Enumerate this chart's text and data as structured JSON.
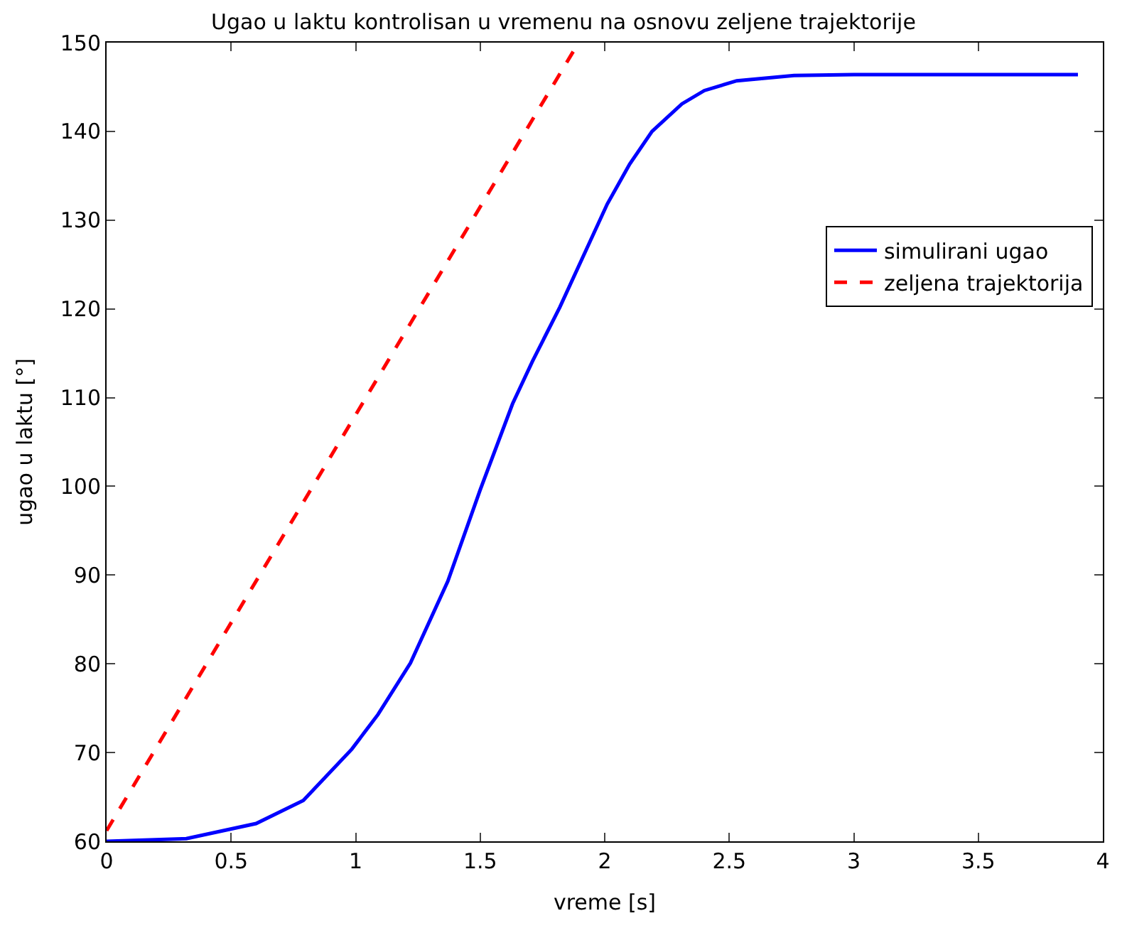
{
  "chart_data": {
    "type": "line",
    "title": "Ugao u laktu kontrolisan u vremenu na osnovu zeljene trajektorije",
    "xlabel": "vreme [s]",
    "ylabel": "ugao u laktu [°]",
    "xlim": [
      0,
      4
    ],
    "ylim": [
      60,
      150
    ],
    "xticks": [
      0,
      0.5,
      1,
      1.5,
      2,
      2.5,
      3,
      3.5,
      4
    ],
    "yticks": [
      60,
      70,
      80,
      90,
      100,
      110,
      120,
      130,
      140,
      150
    ],
    "legend": "right",
    "series": [
      {
        "name": "simulirani ugao",
        "color": "#0000ff",
        "line_style": "solid",
        "x": [
          0,
          0.32,
          0.6,
          0.79,
          0.985,
          1.09,
          1.22,
          1.37,
          1.5,
          1.63,
          1.71,
          1.82,
          2.01,
          2.1,
          2.19,
          2.31,
          2.4,
          2.53,
          2.76,
          3.0,
          3.9
        ],
        "values": [
          60,
          60.3,
          62,
          64.6,
          70.4,
          74.3,
          80.1,
          89.3,
          99.6,
          109.3,
          114.1,
          120.2,
          131.8,
          136.3,
          140,
          143.1,
          144.6,
          145.7,
          146.3,
          146.4,
          146.4
        ]
      },
      {
        "name": "zeljena trajektorija",
        "color": "#ff0000",
        "line_style": "dashed",
        "x": [
          0,
          1.895
        ],
        "values": [
          61.2,
          150
        ]
      }
    ]
  }
}
